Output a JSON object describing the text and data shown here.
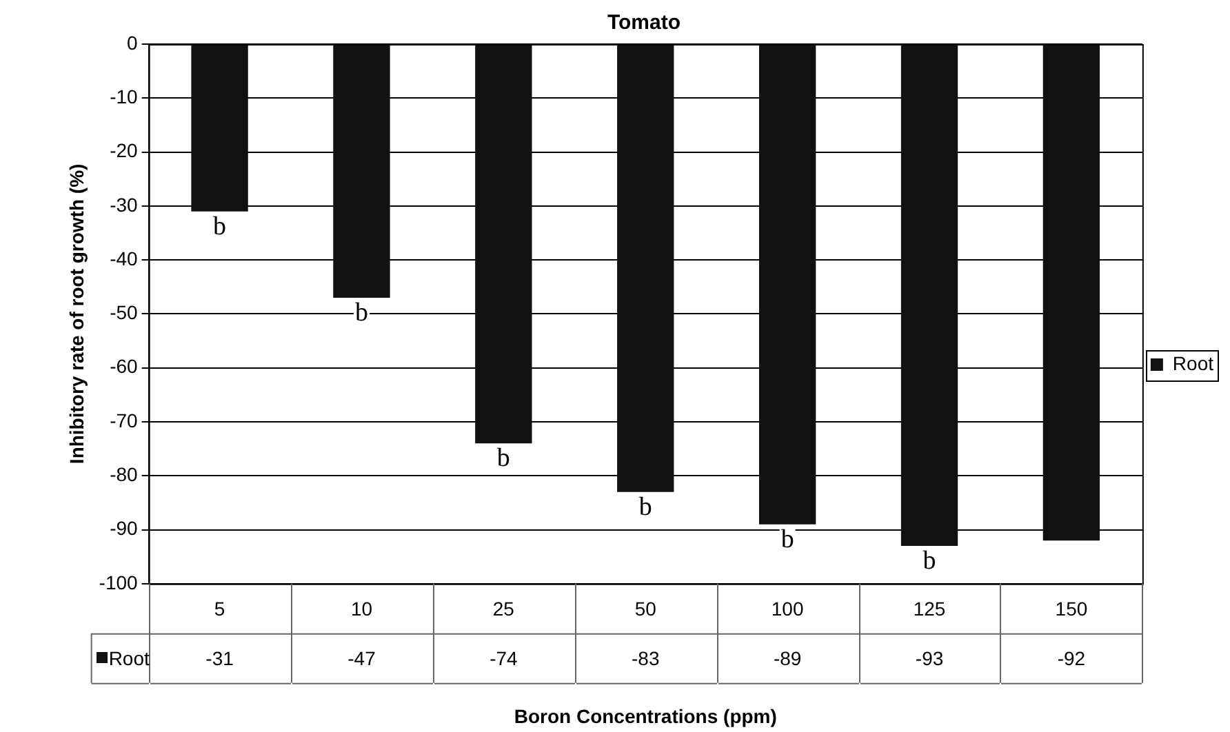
{
  "chart_data": {
    "type": "bar",
    "title": "Tomato",
    "xlabel": "Boron Concentrations (ppm)",
    "ylabel": "Inhibitory rate of root growth (%)",
    "categories": [
      "5",
      "10",
      "25",
      "50",
      "100",
      "125",
      "150"
    ],
    "series": [
      {
        "name": "Root",
        "color": "#111111",
        "values": [
          -31,
          -47,
          -74,
          -83,
          -89,
          -93,
          -92
        ]
      }
    ],
    "ylim": [
      -100,
      0
    ],
    "yticks": [
      -100,
      -90,
      -80,
      -70,
      -60,
      -50,
      -40,
      -30,
      -20,
      -10,
      0
    ],
    "grid": "y",
    "legend": "right",
    "data_labels": true,
    "annotations": [
      {
        "text": "b",
        "x": "5",
        "y": -31
      },
      {
        "text": "b",
        "x": "10",
        "y": -47
      },
      {
        "text": "b",
        "x": "25",
        "y": -74
      },
      {
        "text": "b",
        "x": "50",
        "y": -83
      },
      {
        "text": "b",
        "x": "100",
        "y": -89
      },
      {
        "text": "b",
        "x": "125",
        "y": -93
      }
    ]
  }
}
